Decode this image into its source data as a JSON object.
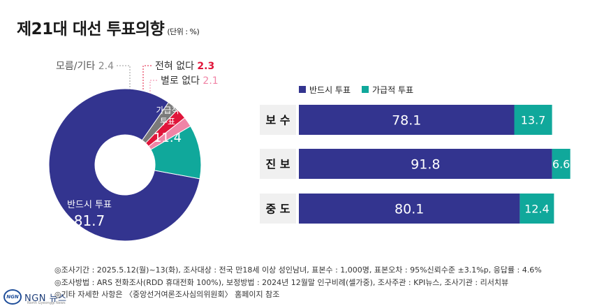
{
  "title": "제21대 대선 투표의향",
  "unit": "(단위 : %)",
  "colors": {
    "navy": "#33348f",
    "teal": "#10a89b",
    "darkgray": "#7a7a7a",
    "red": "#e0153a",
    "pink": "#f084a6"
  },
  "chart_data": [
    {
      "type": "pie",
      "donut": true,
      "slices": [
        {
          "label": "반드시 투표",
          "value": 81.7,
          "color": "#33348f"
        },
        {
          "label": "모름/기타",
          "value": 2.4,
          "color": "#7a7a7a"
        },
        {
          "label": "전혀 없다",
          "value": 2.3,
          "color": "#e0153a"
        },
        {
          "label": "별로 없다",
          "value": 2.1,
          "color": "#f084a6"
        },
        {
          "label": "가급적 투표",
          "value": 11.4,
          "color": "#10a89b"
        }
      ],
      "labels": {
        "must": {
          "name": "반드시 투표",
          "value": "81.7"
        },
        "maybe": {
          "name1": "가급적",
          "name2": "투표",
          "value": "11.4"
        },
        "unknown": {
          "name": "모름/기타",
          "value": "2.4"
        },
        "never": {
          "name": "전혀 없다",
          "value": "2.3"
        },
        "rarely": {
          "name": "별로 없다",
          "value": "2.1"
        }
      }
    },
    {
      "type": "bar",
      "stacked": true,
      "orientation": "horizontal",
      "categories": [
        "보 수",
        "진 보",
        "중 도"
      ],
      "series": [
        {
          "name": "반드시 투표",
          "values": [
            78.1,
            91.8,
            80.1
          ],
          "color": "#33348f"
        },
        {
          "name": "가급적 투표",
          "values": [
            13.7,
            6.6,
            12.4
          ],
          "color": "#10a89b"
        }
      ],
      "legend": "top-left"
    }
  ],
  "notes": [
    "◎조사기간 : 2025.5.12(월)~13(화), 조사대상 : 전국 만18세 이상 성인남녀, 표본수 : 1,000명, 표본오차 : 95%신뢰수준 ±3.1%p, 응답률 : 4.6%",
    "◎조사방법 : ARS 전화조사(RDD 휴대전화 100%), 보정방법 : 2024년 12월말 인구비례(셀가중), 조사주관 : KPI뉴스, 조사기관 : 리서치뷰",
    "◎기타 자세한 사항은 〈중앙선거여론조사심의위원회〉 홈페이지 참조"
  ],
  "logo": {
    "mark": "NGN",
    "name": "NGN 뉴스",
    "sub": "North Gyeonggi News"
  }
}
